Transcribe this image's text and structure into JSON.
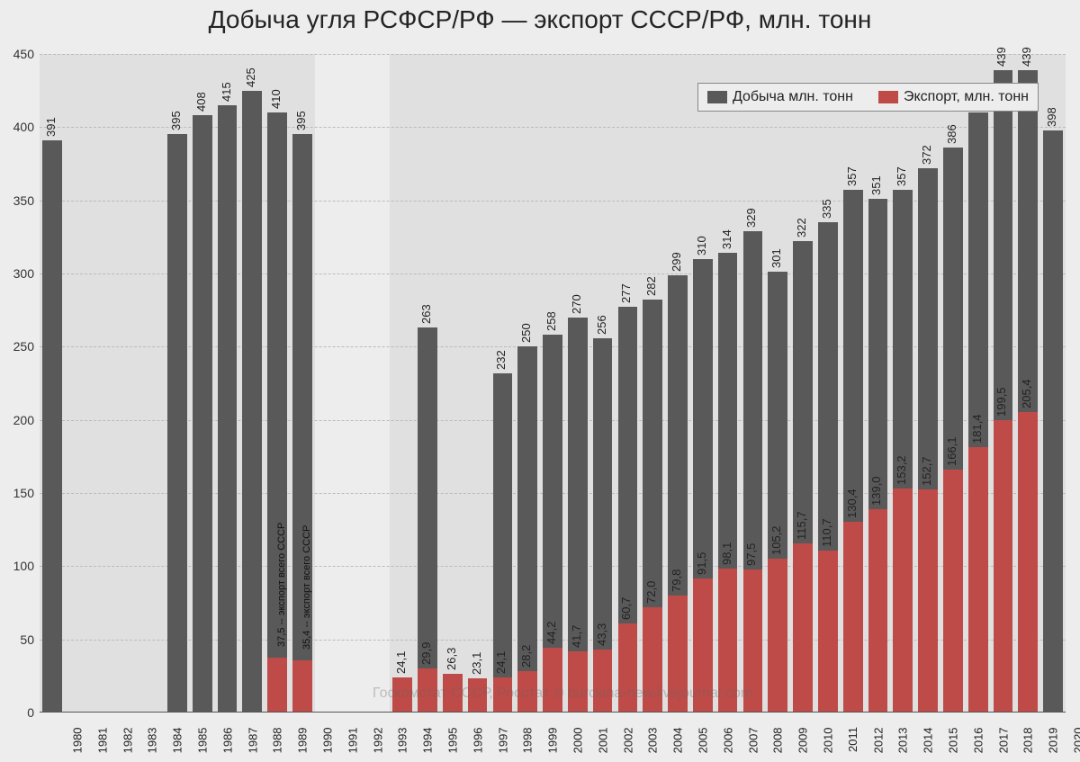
{
  "title": "Добыча угля РСФСР/РФ — экспорт СССР/РФ, млн. тонн",
  "legend": {
    "production": "Добыча млн. тонн",
    "export": "Экспорт,  млн. тонн"
  },
  "watermark": "Госкомстат СССР, Росстат © burckina-new.livejournal.com",
  "annotations": {
    "1989": "37,5 -- экспорт всего СССР",
    "1990": "35,4 -- экспорт всего СССР"
  },
  "chart": {
    "type": "bar",
    "ylim": [
      0,
      450
    ],
    "ytick_step": 50,
    "grid_dashed": true,
    "grid_color": "#bbbbbb",
    "background_color": "#ededed",
    "zone_color": "#e0e0e0",
    "bar_width_ratio": 0.78,
    "colors": {
      "production": "#595959",
      "export": "#be4b48"
    },
    "title_fontsize": 28,
    "label_fontsize": 13,
    "legend_fontsize": 16,
    "years": [
      "1980",
      "1981",
      "1982",
      "1983",
      "1984",
      "1985",
      "1986",
      "1987",
      "1988",
      "1989",
      "1990",
      "1991",
      "1992",
      "1993",
      "1994",
      "1995",
      "1996",
      "1997",
      "1998",
      "1999",
      "2000",
      "2001",
      "2002",
      "2003",
      "2004",
      "2005",
      "2006",
      "2007",
      "2008",
      "2009",
      "2010",
      "2011",
      "2012",
      "2013",
      "2014",
      "2015",
      "2016",
      "2017",
      "2018",
      "2019",
      "2020"
    ],
    "data": [
      {
        "year": "1980",
        "prod": 391,
        "exp": null
      },
      {
        "year": "1981",
        "prod": null,
        "exp": null
      },
      {
        "year": "1982",
        "prod": null,
        "exp": null
      },
      {
        "year": "1983",
        "prod": null,
        "exp": null
      },
      {
        "year": "1984",
        "prod": null,
        "exp": null
      },
      {
        "year": "1985",
        "prod": 395,
        "exp": null
      },
      {
        "year": "1986",
        "prod": 408,
        "exp": null
      },
      {
        "year": "1987",
        "prod": 415,
        "exp": null
      },
      {
        "year": "1988",
        "prod": 425,
        "exp": null
      },
      {
        "year": "1989",
        "prod": 410,
        "exp": 37.5,
        "exp_label": "37,5"
      },
      {
        "year": "1990",
        "prod": 395,
        "exp": 35.4,
        "exp_label": "35,4"
      },
      {
        "year": "1991",
        "prod": null,
        "exp": null
      },
      {
        "year": "1992",
        "prod": null,
        "exp": null
      },
      {
        "year": "1993",
        "prod": null,
        "exp": null
      },
      {
        "year": "1994",
        "prod": null,
        "exp": 24.1,
        "exp_label": "24,1"
      },
      {
        "year": "1995",
        "prod": 263,
        "exp": 29.9,
        "exp_label": "29,9"
      },
      {
        "year": "1996",
        "prod": null,
        "exp": 26.3,
        "exp_label": "26,3"
      },
      {
        "year": "1997",
        "prod": null,
        "exp": 23.1,
        "exp_label": "23,1"
      },
      {
        "year": "1998",
        "prod": 232,
        "exp": 24.1,
        "exp_label": "24,1"
      },
      {
        "year": "1999",
        "prod": 250,
        "exp": 28.2,
        "exp_label": "28,2"
      },
      {
        "year": "2000",
        "prod": 258,
        "exp": 44.2,
        "exp_label": "44,2"
      },
      {
        "year": "2001",
        "prod": 270,
        "exp": 41.7,
        "exp_label": "41,7"
      },
      {
        "year": "2002",
        "prod": 256,
        "exp": 43.3,
        "exp_label": "43,3"
      },
      {
        "year": "2003",
        "prod": 277,
        "exp": 60.7,
        "exp_label": "60,7"
      },
      {
        "year": "2004",
        "prod": 282,
        "exp": 72.0,
        "exp_label": "72,0"
      },
      {
        "year": "2005",
        "prod": 299,
        "exp": 79.8,
        "exp_label": "79,8"
      },
      {
        "year": "2006",
        "prod": 310,
        "exp": 91.5,
        "exp_label": "91,5"
      },
      {
        "year": "2007",
        "prod": 314,
        "exp": 98.1,
        "exp_label": "98,1"
      },
      {
        "year": "2008",
        "prod": 329,
        "exp": 97.5,
        "exp_label": "97,5"
      },
      {
        "year": "2009",
        "prod": 301,
        "exp": 105.2,
        "exp_label": "105,2"
      },
      {
        "year": "2010",
        "prod": 322,
        "exp": 115.7,
        "exp_label": "115,7"
      },
      {
        "year": "2011",
        "prod": 335,
        "exp": 110.7,
        "exp_label": "110,7"
      },
      {
        "year": "2012",
        "prod": 357,
        "exp": 130.4,
        "exp_label": "130,4"
      },
      {
        "year": "2013",
        "prod": 351,
        "exp": 139.0,
        "exp_label": "139,0"
      },
      {
        "year": "2014",
        "prod": 357,
        "exp": 153.2,
        "exp_label": "153,2"
      },
      {
        "year": "2015",
        "prod": 372,
        "exp": 152.7,
        "exp_label": "152,7"
      },
      {
        "year": "2016",
        "prod": 386,
        "exp": 166.1,
        "exp_label": "166,1"
      },
      {
        "year": "2017",
        "prod": 410,
        "exp": 181.4,
        "exp_label": "181,4"
      },
      {
        "year": "2018",
        "prod": 439,
        "exp": 199.5,
        "exp_label": "199,5"
      },
      {
        "year": "2019",
        "prod": 439,
        "exp": 205.4,
        "exp_label": "205,4"
      },
      {
        "year": "2020",
        "prod": 398,
        "exp": null
      }
    ],
    "shaded_zones": [
      {
        "from": "1980",
        "to": "1990"
      },
      {
        "from": "1994",
        "to": "2020"
      }
    ]
  }
}
